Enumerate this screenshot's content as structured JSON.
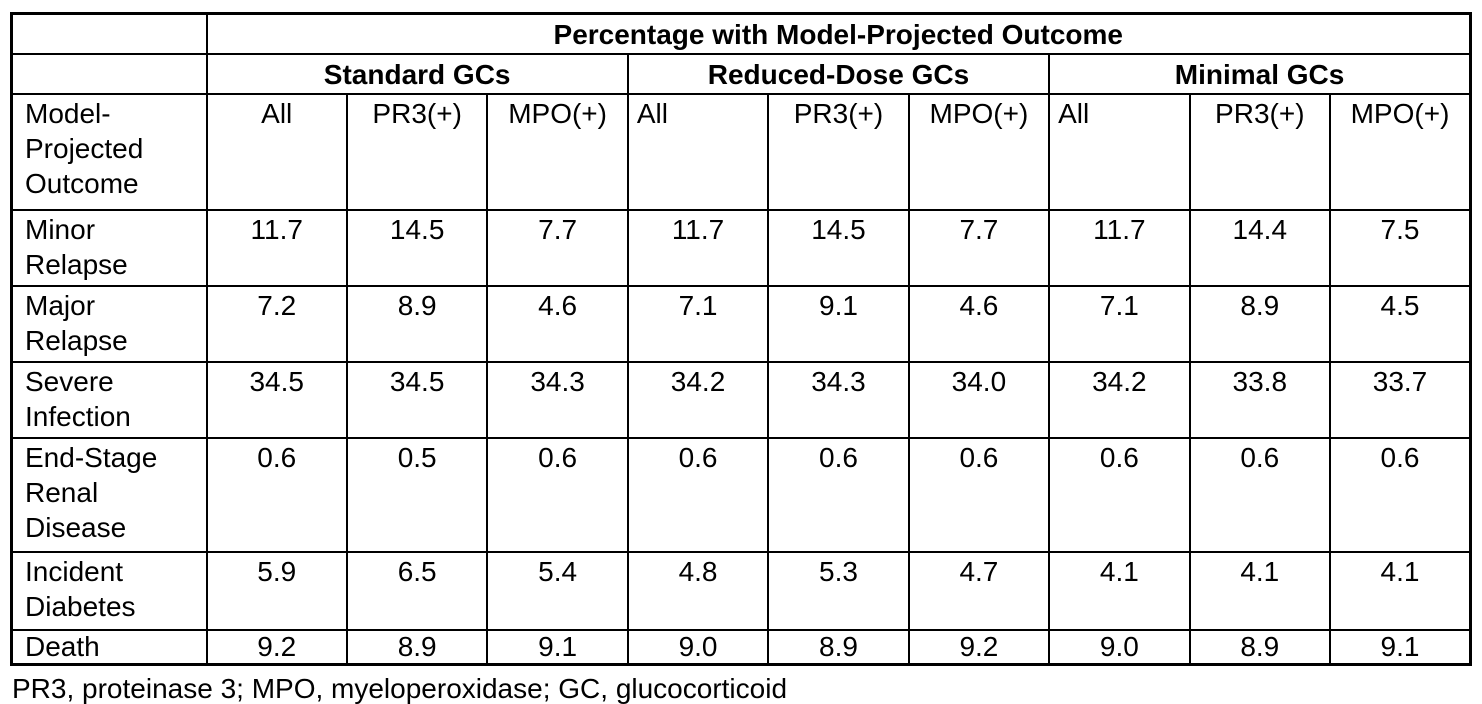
{
  "table": {
    "title": "Percentage with Model-Projected Outcome",
    "corner_header": "Model-Projected Outcome",
    "groups": [
      {
        "label": "Standard GCs",
        "columns": [
          "All",
          "PR3(+)",
          "MPO(+)"
        ]
      },
      {
        "label": "Reduced-Dose GCs",
        "columns": [
          "All",
          "PR3(+)",
          "MPO(+)"
        ]
      },
      {
        "label": "Minimal GCs",
        "columns": [
          "All",
          "PR3(+)",
          "MPO(+)"
        ]
      }
    ],
    "rows": [
      {
        "label": "Minor Relapse",
        "values": [
          "11.7",
          "14.5",
          "7.7",
          "11.7",
          "14.5",
          "7.7",
          "11.7",
          "14.4",
          "7.5"
        ]
      },
      {
        "label": "Major Relapse",
        "values": [
          "7.2",
          "8.9",
          "4.6",
          "7.1",
          "9.1",
          "4.6",
          "7.1",
          "8.9",
          "4.5"
        ]
      },
      {
        "label": "Severe Infection",
        "values": [
          "34.5",
          "34.5",
          "34.3",
          "34.2",
          "34.3",
          "34.0",
          "34.2",
          "33.8",
          "33.7"
        ]
      },
      {
        "label": "End-Stage Renal Disease",
        "values": [
          "0.6",
          "0.5",
          "0.6",
          "0.6",
          "0.6",
          "0.6",
          "0.6",
          "0.6",
          "0.6"
        ]
      },
      {
        "label": "Incident Diabetes",
        "values": [
          "5.9",
          "6.5",
          "5.4",
          "4.8",
          "5.3",
          "4.7",
          "4.1",
          "4.1",
          "4.1"
        ]
      },
      {
        "label": "Death",
        "values": [
          "9.2",
          "8.9",
          "9.1",
          "9.0",
          "8.9",
          "9.2",
          "9.0",
          "8.9",
          "9.1"
        ]
      }
    ],
    "text_color": "#000000",
    "border_color": "#000000",
    "background_color": "#ffffff"
  },
  "footnote": "PR3, proteinase 3; MPO, myeloperoxidase; GC, glucocorticoid"
}
